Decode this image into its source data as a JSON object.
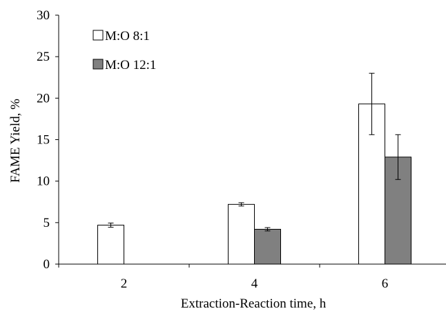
{
  "chart_data": {
    "type": "bar",
    "title": "",
    "xlabel": "Extraction-Reaction time, h",
    "ylabel": "FAME Yield, %",
    "categories": [
      "2",
      "4",
      "6"
    ],
    "ylim": [
      0,
      30
    ],
    "yticks": [
      "0",
      "5",
      "10",
      "15",
      "20",
      "25",
      "30"
    ],
    "grid": false,
    "legend_position": "top-left",
    "series": [
      {
        "name": "M:O 8:1",
        "color": "#ffffff",
        "values": [
          4.7,
          7.2,
          19.3
        ],
        "errors": [
          0.25,
          0.2,
          3.7
        ]
      },
      {
        "name": "M:O 12:1",
        "color": "#808080",
        "values": [
          null,
          4.2,
          12.9
        ],
        "errors": [
          null,
          0.2,
          2.7
        ]
      }
    ]
  }
}
